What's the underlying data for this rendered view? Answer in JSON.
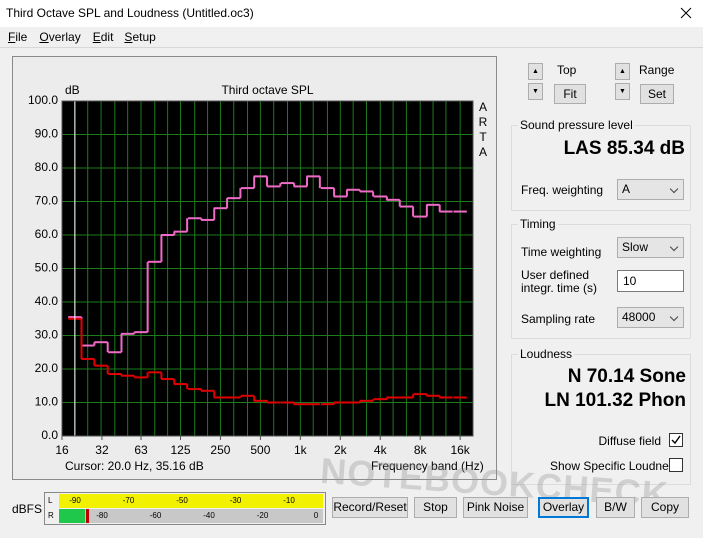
{
  "window": {
    "title": "Third Octave SPL and Loudness (Untitled.oc3)"
  },
  "menu": [
    "File",
    "Overlay",
    "Edit",
    "Setup"
  ],
  "chart_data": {
    "type": "step",
    "title": "Third octave SPL",
    "y_unit": "dB",
    "side_label": "ARTA",
    "xlabel": "Frequency band (Hz)",
    "cursor": "Cursor:   20.0 Hz, 35.16 dB",
    "log_x": true,
    "grid": true,
    "grid_color": "#1d7a1d",
    "background": "#000000",
    "x": [
      20,
      25,
      31.5,
      40,
      50,
      63,
      80,
      100,
      125,
      160,
      200,
      250,
      315,
      400,
      500,
      630,
      800,
      1000,
      1250,
      1600,
      2000,
      2500,
      3150,
      4000,
      5000,
      6300,
      8000,
      10000,
      12500,
      16000
    ],
    "series": [
      {
        "color": "#f06ac8",
        "values": [
          35.5,
          27,
          28,
          25,
          30.5,
          31,
          52,
          60,
          61,
          65,
          64.5,
          68,
          71,
          74,
          77.5,
          74.5,
          75.5,
          74.5,
          77.5,
          74,
          71.5,
          73.5,
          73,
          71.5,
          70.5,
          68.5,
          65.5,
          69,
          67,
          67
        ]
      },
      {
        "color": "#e00000",
        "values": [
          35,
          23,
          21,
          18.5,
          18,
          17.5,
          19,
          17,
          15.5,
          14,
          13.5,
          11.5,
          11.5,
          12,
          10.5,
          10,
          10,
          9.5,
          9.5,
          9.5,
          10,
          10,
          10.5,
          11,
          11.5,
          11.5,
          12.5,
          12,
          11.5,
          11.5
        ]
      }
    ],
    "xlim": [
      16,
      20000
    ],
    "xticks": [
      16,
      32,
      63,
      125,
      250,
      500,
      {
        "value": 1000,
        "label": "1k"
      },
      {
        "value": 2000,
        "label": "2k"
      },
      {
        "value": 4000,
        "label": "4k"
      },
      {
        "value": 8000,
        "label": "8k"
      },
      {
        "value": 16000,
        "label": "16k"
      }
    ],
    "ylim": [
      0,
      100
    ],
    "yticks": [
      {
        "value": 0,
        "label": "0.0"
      },
      {
        "value": 10,
        "label": "10.0"
      },
      {
        "value": 20,
        "label": "20.0"
      },
      {
        "value": 30,
        "label": "30.0"
      },
      {
        "value": 40,
        "label": "40.0"
      },
      {
        "value": 50,
        "label": "50.0"
      },
      {
        "value": 60,
        "label": "60.0"
      },
      {
        "value": 70,
        "label": "70.0"
      },
      {
        "value": 80,
        "label": "80.0"
      },
      {
        "value": 90,
        "label": "90.0"
      },
      {
        "value": 100,
        "label": "100.0"
      }
    ]
  },
  "controls": {
    "top_label": "Top",
    "fit_button": "Fit",
    "range_label": "Range",
    "set_button": "Set"
  },
  "spl": {
    "title": "Sound pressure level",
    "reading": "LAS 85.34 dB",
    "freq_weighting_label": "Freq. weighting",
    "freq_weighting": "A"
  },
  "timing": {
    "title": "Timing",
    "time_weighting_label": "Time weighting",
    "time_weighting": "Slow",
    "integr_label": [
      "User defined",
      "integr. time (s)"
    ],
    "integr_time": "10",
    "sampling_rate_label": "Sampling rate",
    "sampling_rate": "48000"
  },
  "loudness": {
    "title": "Loudness",
    "n": "N 70.14 Sone",
    "ln": "LN 101.32 Phon",
    "diffuse_field": "Diffuse field",
    "diffuse_checked": true,
    "specific": "Show Specific Loudness",
    "specific_checked": false
  },
  "meter": {
    "label": "dBFS",
    "channels": [
      "L",
      "R"
    ],
    "scale_top": [
      "-90",
      "-70",
      "-50",
      "-30",
      "-10"
    ],
    "scale_bottom": [
      "-80",
      "-60",
      "-40",
      "-20",
      "0"
    ]
  },
  "buttons": [
    "Record/Reset",
    "Stop",
    "Pink Noise",
    "Overlay",
    "B/W",
    "Copy"
  ],
  "watermark": "NOTEBOOKCHECK"
}
